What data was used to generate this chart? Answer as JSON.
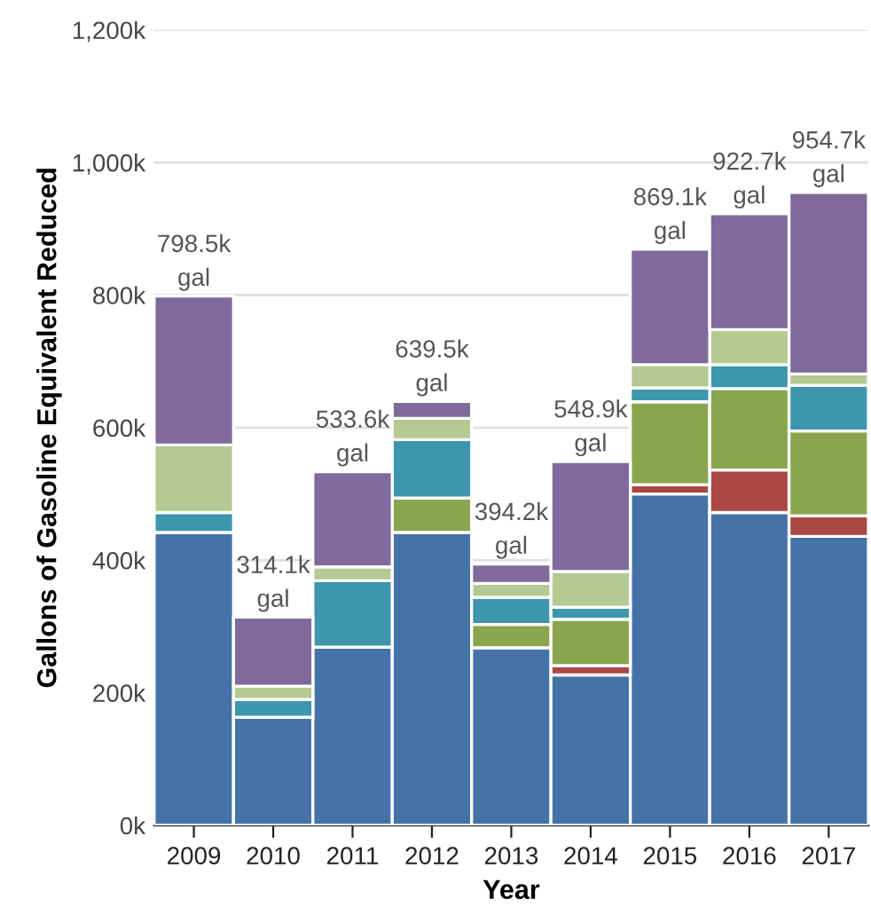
{
  "chart_data": {
    "type": "bar",
    "stacked": true,
    "xlabel": "Year",
    "ylabel": "Gallons of Gasoline Equivalent Reduced",
    "categories": [
      "2009",
      "2010",
      "2011",
      "2012",
      "2013",
      "2014",
      "2015",
      "2016",
      "2017"
    ],
    "series": [
      {
        "color": "#4572a7",
        "values": [
          442000,
          163000,
          269000,
          442000,
          268000,
          227000,
          500000,
          472000,
          436000
        ]
      },
      {
        "color": "#aa4643",
        "values": [
          0,
          0,
          0,
          0,
          0,
          14000,
          14000,
          64000,
          31000
        ]
      },
      {
        "color": "#89a54e",
        "values": [
          0,
          0,
          0,
          52000,
          35000,
          70000,
          125000,
          123000,
          128000
        ]
      },
      {
        "color": "#3d96ae",
        "values": [
          30000,
          27000,
          100000,
          88000,
          41000,
          18000,
          21000,
          36000,
          69000
        ]
      },
      {
        "color": "#b5ca92",
        "values": [
          102000,
          20000,
          21000,
          32000,
          21000,
          54000,
          35000,
          53000,
          17000
        ]
      },
      {
        "color": "#80699b",
        "values": [
          224500,
          104100,
          143600,
          25500,
          29200,
          165900,
          174100,
          174700,
          273700
        ]
      }
    ],
    "totals": [
      "798.5k\ngal",
      "314.1k\ngal",
      "533.6k\ngal",
      "639.5k\ngal",
      "394.2k\ngal",
      "548.9k\ngal",
      "869.1k\ngal",
      "922.7k\ngal",
      "954.7k\ngal"
    ],
    "ylim": [
      0,
      1200000
    ],
    "yticks": [
      {
        "value": 0,
        "label": "0k"
      },
      {
        "value": 200000,
        "label": "200k"
      },
      {
        "value": 400000,
        "label": "400k"
      },
      {
        "value": 600000,
        "label": "600k"
      },
      {
        "value": 800000,
        "label": "800k"
      },
      {
        "value": 1000000,
        "label": "1,000k"
      },
      {
        "value": 1200000,
        "label": "1,200k"
      }
    ],
    "grid": "y"
  }
}
